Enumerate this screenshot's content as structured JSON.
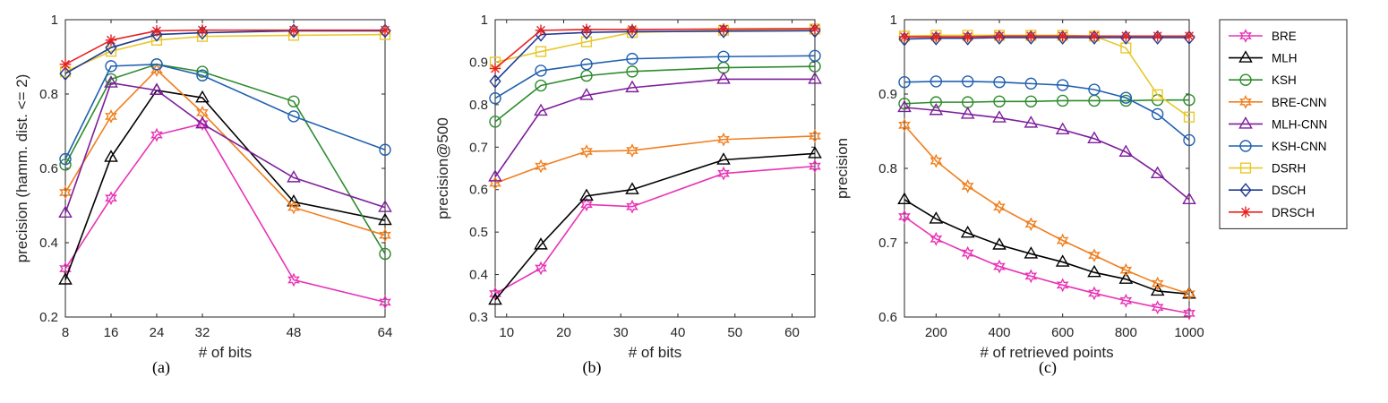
{
  "chart_data": [
    {
      "type": "line",
      "xlabel": "# of bits",
      "ylabel": "precision (hamm. dist. <= 2)",
      "caption": "(a)",
      "xlim": [
        8,
        64
      ],
      "ylim": [
        0.2,
        1
      ],
      "xticks": [
        8,
        16,
        24,
        32,
        48,
        64
      ],
      "yticks": [
        0.2,
        0.4,
        0.6,
        0.8,
        1
      ],
      "ytick_labels": [
        "0.2",
        "0.4",
        "0.6",
        "0.8",
        "1"
      ],
      "x": [
        8,
        16,
        24,
        32,
        48,
        64
      ],
      "series": [
        {
          "name": "BRE",
          "values": [
            0.33,
            0.52,
            0.69,
            0.72,
            0.3,
            0.24
          ]
        },
        {
          "name": "MLH",
          "values": [
            0.3,
            0.63,
            0.81,
            0.79,
            0.51,
            0.46
          ]
        },
        {
          "name": "KSH",
          "values": [
            0.61,
            0.84,
            0.88,
            0.86,
            0.78,
            0.37
          ]
        },
        {
          "name": "BRE-CNN",
          "values": [
            0.535,
            0.74,
            0.865,
            0.75,
            0.495,
            0.42
          ]
        },
        {
          "name": "MLH-CNN",
          "values": [
            0.48,
            0.83,
            0.81,
            0.72,
            0.575,
            0.495
          ]
        },
        {
          "name": "KSH-CNN",
          "values": [
            0.625,
            0.875,
            0.88,
            0.85,
            0.74,
            0.65
          ]
        },
        {
          "name": "DSRH",
          "values": [
            0.86,
            0.915,
            0.945,
            0.955,
            0.958,
            0.96
          ]
        },
        {
          "name": "DSCH",
          "values": [
            0.855,
            0.925,
            0.96,
            0.965,
            0.97,
            0.97
          ]
        },
        {
          "name": "DRSCH",
          "values": [
            0.88,
            0.945,
            0.97,
            0.972,
            0.972,
            0.972
          ]
        }
      ]
    },
    {
      "type": "line",
      "xlabel": "# of bits",
      "ylabel": "precision@500",
      "caption": "(b)",
      "xlim": [
        8,
        64
      ],
      "ylim": [
        0.3,
        1
      ],
      "xticks": [
        10,
        20,
        30,
        40,
        50,
        60
      ],
      "yticks": [
        0.3,
        0.4,
        0.5,
        0.6,
        0.7,
        0.8,
        0.9,
        1
      ],
      "ytick_labels": [
        "0.3",
        "0.4",
        "0.5",
        "0.6",
        "0.7",
        "0.8",
        "0.9",
        "1"
      ],
      "x": [
        8,
        16,
        24,
        32,
        48,
        64
      ],
      "series": [
        {
          "name": "BRE",
          "values": [
            0.355,
            0.415,
            0.565,
            0.56,
            0.638,
            0.655
          ]
        },
        {
          "name": "MLH",
          "values": [
            0.34,
            0.47,
            0.585,
            0.6,
            0.67,
            0.685
          ]
        },
        {
          "name": "KSH",
          "values": [
            0.76,
            0.845,
            0.868,
            0.878,
            0.887,
            0.89
          ]
        },
        {
          "name": "BRE-CNN",
          "values": [
            0.615,
            0.655,
            0.69,
            0.692,
            0.718,
            0.726
          ]
        },
        {
          "name": "MLH-CNN",
          "values": [
            0.63,
            0.785,
            0.822,
            0.84,
            0.86,
            0.86
          ]
        },
        {
          "name": "KSH-CNN",
          "values": [
            0.815,
            0.88,
            0.895,
            0.908,
            0.913,
            0.915
          ]
        },
        {
          "name": "DSRH",
          "values": [
            0.9,
            0.925,
            0.948,
            0.97,
            0.975,
            0.978
          ]
        },
        {
          "name": "DSCH",
          "values": [
            0.855,
            0.965,
            0.97,
            0.972,
            0.973,
            0.974
          ]
        },
        {
          "name": "DRSCH",
          "values": [
            0.885,
            0.975,
            0.977,
            0.977,
            0.978,
            0.979
          ]
        }
      ]
    },
    {
      "type": "line",
      "xlabel": "# of retrieved points",
      "ylabel": "precision",
      "caption": "(c)",
      "xlim": [
        100,
        1000
      ],
      "ylim": [
        0.6,
        1
      ],
      "xticks": [
        200,
        400,
        600,
        800,
        1000
      ],
      "yticks": [
        0.6,
        0.7,
        0.8,
        0.9,
        1
      ],
      "ytick_labels": [
        "0.6",
        "0.7",
        "0.8",
        "0.9",
        "1"
      ],
      "x": [
        100,
        200,
        300,
        400,
        500,
        600,
        700,
        800,
        900,
        1000
      ],
      "series": [
        {
          "name": "BRE",
          "values": [
            0.735,
            0.705,
            0.686,
            0.668,
            0.655,
            0.643,
            0.632,
            0.622,
            0.613,
            0.605
          ]
        },
        {
          "name": "MLH",
          "values": [
            0.758,
            0.732,
            0.713,
            0.697,
            0.685,
            0.674,
            0.66,
            0.651,
            0.635,
            0.631
          ]
        },
        {
          "name": "KSH",
          "values": [
            0.887,
            0.889,
            0.889,
            0.89,
            0.89,
            0.891,
            0.891,
            0.891,
            0.892,
            0.892
          ]
        },
        {
          "name": "BRE-CNN",
          "values": [
            0.858,
            0.81,
            0.776,
            0.748,
            0.725,
            0.703,
            0.683,
            0.663,
            0.645,
            0.631
          ]
        },
        {
          "name": "MLH-CNN",
          "values": [
            0.882,
            0.878,
            0.873,
            0.868,
            0.861,
            0.852,
            0.84,
            0.822,
            0.793,
            0.758
          ]
        },
        {
          "name": "KSH-CNN",
          "values": [
            0.916,
            0.917,
            0.917,
            0.916,
            0.914,
            0.912,
            0.906,
            0.895,
            0.873,
            0.838
          ]
        },
        {
          "name": "DSRH",
          "values": [
            0.978,
            0.979,
            0.979,
            0.979,
            0.979,
            0.979,
            0.978,
            0.962,
            0.899,
            0.869
          ]
        },
        {
          "name": "DSCH",
          "values": [
            0.974,
            0.975,
            0.975,
            0.976,
            0.976,
            0.976,
            0.976,
            0.976,
            0.976,
            0.976
          ]
        },
        {
          "name": "DRSCH",
          "values": [
            0.977,
            0.977,
            0.977,
            0.978,
            0.978,
            0.978,
            0.978,
            0.978,
            0.978,
            0.978
          ]
        }
      ]
    }
  ],
  "legend": {
    "entries": [
      {
        "name": "BRE",
        "color": "#e833b5",
        "marker": "hexagram"
      },
      {
        "name": "MLH",
        "color": "#000000",
        "marker": "triangle"
      },
      {
        "name": "KSH",
        "color": "#2e8b2e",
        "marker": "circle"
      },
      {
        "name": "BRE-CNN",
        "color": "#f07f1e",
        "marker": "hexagram"
      },
      {
        "name": "MLH-CNN",
        "color": "#7e1e9c",
        "marker": "triangle"
      },
      {
        "name": "KSH-CNN",
        "color": "#2060b0",
        "marker": "circle"
      },
      {
        "name": "DSRH",
        "color": "#e8c82a",
        "marker": "square"
      },
      {
        "name": "DSCH",
        "color": "#1f3a93",
        "marker": "diamond"
      },
      {
        "name": "DRSCH",
        "color": "#e82020",
        "marker": "asterisk"
      }
    ]
  }
}
